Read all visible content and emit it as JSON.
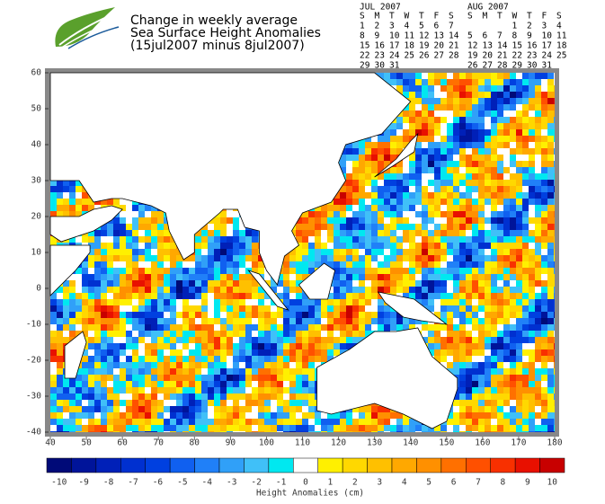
{
  "header": {
    "title_lines": [
      "Change in weekly average",
      "Sea Surface Height Anomalies",
      "(15jul2007 minus 8jul2007)"
    ]
  },
  "calendars": [
    {
      "month": "JUL 2007",
      "weekdays": [
        "S",
        "M",
        "T",
        "W",
        "T",
        "F",
        "S"
      ],
      "weeks": [
        [
          "1",
          "2",
          "3",
          "4",
          "5",
          "6",
          "7"
        ],
        [
          "8",
          "9",
          "10",
          "11",
          "12",
          "13",
          "14"
        ],
        [
          "15",
          "16",
          "17",
          "18",
          "19",
          "20",
          "21"
        ],
        [
          "22",
          "23",
          "24",
          "25",
          "26",
          "27",
          "28"
        ],
        [
          "29",
          "30",
          "31"
        ]
      ],
      "highlighted_weeks": [
        1,
        2
      ]
    },
    {
      "month": "AUG 2007",
      "weekdays": [
        "S",
        "M",
        "T",
        "W",
        "T",
        "F",
        "S"
      ],
      "weeks": [
        [
          null,
          null,
          null,
          "1",
          "2",
          "3",
          "4"
        ],
        [
          "5",
          "6",
          "7",
          "8",
          "9",
          "10",
          "11"
        ],
        [
          "12",
          "13",
          "14",
          "15",
          "16",
          "17",
          "18"
        ],
        [
          "19",
          "20",
          "21",
          "22",
          "23",
          "24",
          "25"
        ],
        [
          "26",
          "27",
          "28",
          "29",
          "30",
          "31"
        ]
      ],
      "highlighted_weeks": []
    }
  ],
  "map": {
    "xlim": [
      40,
      180
    ],
    "ylim": [
      -40,
      60
    ],
    "xticks": [
      40,
      50,
      60,
      70,
      80,
      90,
      100,
      110,
      120,
      130,
      140,
      150,
      160,
      170,
      180
    ],
    "yticks": [
      60,
      50,
      40,
      30,
      20,
      10,
      0,
      -10,
      -20,
      -30,
      -40
    ]
  },
  "colorbar": {
    "label": "Height Anomalies (cm)",
    "values": [
      -10,
      -9,
      -8,
      -7,
      -6,
      -5,
      -4,
      -3,
      -2,
      -1,
      0,
      1,
      2,
      3,
      4,
      5,
      6,
      7,
      8,
      9,
      10
    ],
    "colors": [
      "#000a78",
      "#00149a",
      "#0020b8",
      "#0030d0",
      "#0040e0",
      "#1060f0",
      "#2080f8",
      "#30a0f8",
      "#40c0f8",
      "#00e8f0",
      "#ffffff",
      "#fff000",
      "#ffd800",
      "#ffc000",
      "#ffa800",
      "#ff9000",
      "#ff7000",
      "#ff5000",
      "#f83000",
      "#e81000",
      "#c80000"
    ]
  }
}
